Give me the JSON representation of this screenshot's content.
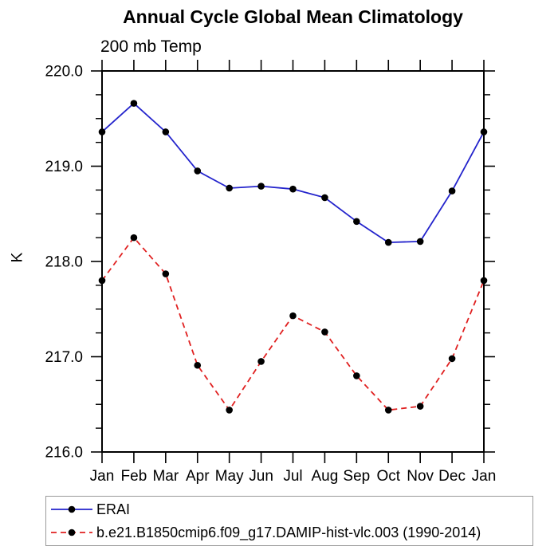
{
  "chart_data": {
    "type": "line",
    "title": "Annual Cycle Global Mean Climatology",
    "subtitle": "200 mb Temp",
    "ylabel": "K",
    "x_categories": [
      "Jan",
      "Feb",
      "Mar",
      "Apr",
      "May",
      "Jun",
      "Jul",
      "Aug",
      "Sep",
      "Oct",
      "Nov",
      "Dec",
      "Jan"
    ],
    "ylim": [
      216.0,
      220.0
    ],
    "ytick_major_step": 1.0,
    "ytick_minor_step": 0.25,
    "ytick_labels": [
      "216.0",
      "217.0",
      "218.0",
      "219.0",
      "220.0"
    ],
    "grid": false,
    "legend_position": "bottom-left",
    "series": [
      {
        "name": "ERAI",
        "style": "solid",
        "color": "#2323cc",
        "marker": "circle",
        "marker_color": "#000000",
        "values": [
          219.36,
          219.66,
          219.36,
          218.95,
          218.77,
          218.79,
          218.76,
          218.67,
          218.42,
          218.2,
          218.21,
          218.74,
          219.36
        ]
      },
      {
        "name": "b.e21.B1850cmip6.f09_g17.DAMIP-hist-vlc.003 (1990-2014)",
        "style": "dashed",
        "color": "#e02020",
        "marker": "circle",
        "marker_color": "#000000",
        "values": [
          217.8,
          218.25,
          217.87,
          216.91,
          216.44,
          216.95,
          217.43,
          217.26,
          216.8,
          216.44,
          216.48,
          216.98,
          217.8
        ]
      }
    ]
  },
  "colors": {
    "axis": "#000000",
    "text": "#000000",
    "background": "#ffffff",
    "legend_border": "#9a9a9a"
  }
}
